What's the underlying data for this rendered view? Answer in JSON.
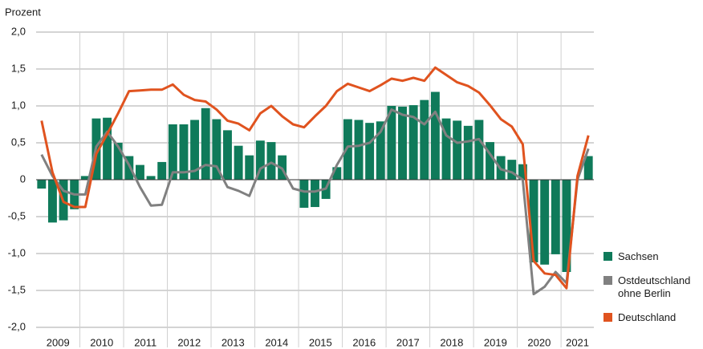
{
  "chart_data": {
    "type": "bar",
    "y_axis_label": "Prozent",
    "ylim": [
      -2,
      2
    ],
    "yticks": [
      {
        "value": -2,
        "label": "-2,0"
      },
      {
        "value": -1.5,
        "label": "-1,5"
      },
      {
        "value": -1,
        "label": "-1,0"
      },
      {
        "value": -0.5,
        "label": "-0,5"
      },
      0,
      {
        "value": 0.5,
        "label": "0,5"
      },
      {
        "value": 1,
        "label": "1,0"
      },
      {
        "value": 1.5,
        "label": "1,5"
      },
      {
        "value": 2,
        "label": "2,0"
      }
    ],
    "grid": true,
    "legend": "right",
    "year_labels": [
      "2009",
      "2010",
      "2011",
      "2012",
      "2013",
      "2014",
      "2015",
      "2016",
      "2017",
      "2018",
      "2019",
      "2020",
      "2021"
    ],
    "series": [
      {
        "name": "Sachsen",
        "type": "bar",
        "color": "#0f7a5a",
        "values": [
          -0.12,
          -0.58,
          -0.55,
          -0.4,
          0.05,
          0.83,
          0.84,
          0.5,
          0.32,
          0.2,
          0.05,
          0.24,
          0.75,
          0.75,
          0.81,
          0.97,
          0.82,
          0.67,
          0.46,
          0.33,
          0.53,
          0.51,
          0.33,
          0.0,
          -0.38,
          -0.37,
          -0.26,
          0.17,
          0.82,
          0.81,
          0.77,
          0.79,
          1.0,
          0.99,
          1.01,
          1.08,
          1.19,
          0.83,
          0.8,
          0.73,
          0.81,
          0.51,
          0.32,
          0.27,
          0.21,
          -1.12,
          -1.15,
          -1.01,
          -1.25,
          0.0,
          0.32
        ]
      },
      {
        "name": "Ostdeutschland ohne Berlin",
        "type": "line",
        "color": "#808080",
        "values": [
          0.34,
          0.05,
          -0.15,
          -0.2,
          -0.2,
          0.45,
          0.65,
          0.45,
          0.2,
          -0.1,
          -0.35,
          -0.34,
          0.1,
          0.1,
          0.12,
          0.2,
          0.18,
          -0.1,
          -0.15,
          -0.22,
          0.15,
          0.23,
          0.15,
          -0.12,
          -0.16,
          -0.16,
          -0.12,
          0.2,
          0.45,
          0.46,
          0.5,
          0.65,
          0.95,
          0.88,
          0.85,
          0.75,
          0.92,
          0.6,
          0.5,
          0.52,
          0.55,
          0.35,
          0.14,
          0.1,
          0.0,
          -1.55,
          -1.45,
          -1.25,
          -1.4,
          0.0,
          0.42
        ]
      },
      {
        "name": "Deutschland",
        "type": "line",
        "color": "#e0531f",
        "values": [
          0.8,
          0.1,
          -0.3,
          -0.37,
          -0.37,
          0.35,
          0.62,
          0.9,
          1.2,
          1.21,
          1.22,
          1.22,
          1.29,
          1.15,
          1.08,
          1.06,
          0.95,
          0.8,
          0.76,
          0.67,
          0.9,
          1.0,
          0.86,
          0.75,
          0.71,
          0.86,
          1.0,
          1.2,
          1.3,
          1.25,
          1.2,
          1.28,
          1.37,
          1.34,
          1.38,
          1.34,
          1.52,
          1.42,
          1.32,
          1.27,
          1.18,
          1.01,
          0.82,
          0.72,
          0.48,
          -1.1,
          -1.27,
          -1.29,
          -1.47,
          0.05,
          0.6
        ]
      }
    ]
  }
}
